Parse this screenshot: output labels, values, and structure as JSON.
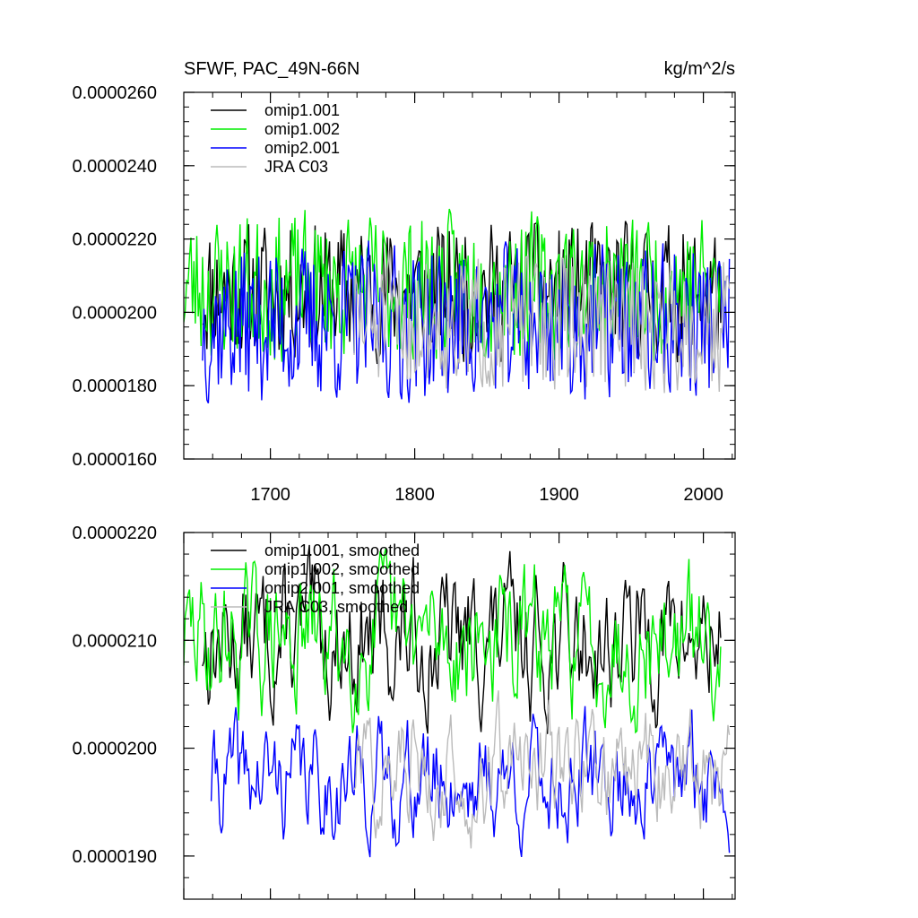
{
  "chart_data": [
    {
      "type": "line",
      "title": "SFWF, PAC_49N-66N",
      "units": "kg/m^2/s",
      "xlim": [
        1640,
        2022
      ],
      "ylim": [
        1.6e-05,
        2.6e-05
      ],
      "x_ticks": [
        1700,
        1800,
        1900,
        2000
      ],
      "x_tick_labels": [
        "1700",
        "1800",
        "1900",
        "2000"
      ],
      "y_ticks": [
        1.6e-05,
        1.8e-05,
        2e-05,
        2.2e-05,
        2.4e-05,
        2.6e-05
      ],
      "y_tick_labels": [
        "0.0000160",
        "0.0000180",
        "0.0000200",
        "0.0000220",
        "0.0000240",
        "0.0000260"
      ],
      "legend_position": "top-left",
      "series": [
        {
          "name": "omip1.001",
          "color": "#000000",
          "x_start": 1653,
          "x_end": 2012,
          "base": 2.06e-05,
          "amp": 1.3e-06,
          "seed": 11
        },
        {
          "name": "omip1.002",
          "color": "#00ee00",
          "x_start": 1640,
          "x_end": 2012,
          "base": 2.07e-05,
          "amp": 1.4e-06,
          "seed": 23
        },
        {
          "name": "omip2.001",
          "color": "#0000ff",
          "x_start": 1653,
          "x_end": 2018,
          "base": 1.97e-05,
          "amp": 1.5e-06,
          "seed": 37
        },
        {
          "name": "JRA C03",
          "color": "#bbbbbb",
          "x_start": 1758,
          "x_end": 2018,
          "base": 1.97e-05,
          "amp": 1.3e-06,
          "seed": 51
        }
      ]
    },
    {
      "type": "line",
      "title": "",
      "units": "",
      "xlim": [
        1640,
        2022
      ],
      "ylim": [
        1.86e-05,
        2.2e-05
      ],
      "x_ticks": [
        1640,
        1700,
        1800,
        1900,
        2000
      ],
      "x_tick_labels": [],
      "y_ticks": [
        1.9e-05,
        2e-05,
        2.1e-05,
        2.2e-05
      ],
      "y_tick_labels": [
        "0.0000190",
        "0.0000200",
        "0.0000210",
        "0.0000220"
      ],
      "legend_position": "top-left",
      "series": [
        {
          "name": "omip1.001, smoothed",
          "color": "#000000",
          "x_start": 1653,
          "x_end": 2012,
          "base": 2.1e-05,
          "amp": 6e-07,
          "seed": 13
        },
        {
          "name": "omip1.002, smoothed",
          "color": "#00ee00",
          "x_start": 1640,
          "x_end": 2012,
          "base": 2.1e-05,
          "amp": 6e-07,
          "seed": 29
        },
        {
          "name": "omip2.001, smoothed",
          "color": "#0000ff",
          "x_start": 1659,
          "x_end": 2018,
          "base": 1.97e-05,
          "amp": 5e-07,
          "seed": 41
        },
        {
          "name": "JRA C03, smoothed",
          "color": "#bbbbbb",
          "x_start": 1758,
          "x_end": 2018,
          "base": 1.98e-05,
          "amp": 5e-07,
          "seed": 57
        }
      ]
    }
  ]
}
